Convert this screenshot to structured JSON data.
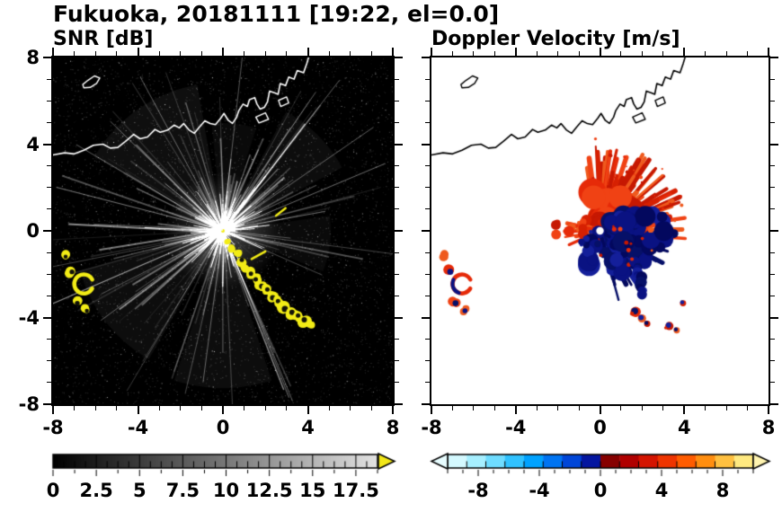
{
  "header": {
    "title": "Fukuoka, 20181111 [19:22, el=0.0]"
  },
  "panels": [
    {
      "title": "SNR [dB]"
    },
    {
      "title": "Doppler Velocity [m/s]"
    }
  ],
  "axis": {
    "xlim": [
      -8,
      8
    ],
    "ylim": [
      -8,
      8
    ],
    "xtick_labels": [
      "-8",
      "-4",
      "0",
      "4",
      "8"
    ],
    "xtick_values": [
      -8,
      -4,
      0,
      4,
      8
    ],
    "ytick_labels": [
      "8",
      "4",
      "0",
      "-4",
      "-8"
    ],
    "ytick_values": [
      8,
      4,
      0,
      -4,
      -8
    ],
    "minor_step": 1
  },
  "colorbars": [
    {
      "panel": "SNR [dB]",
      "range": [
        0,
        18.75
      ],
      "tick_labels": [
        "0",
        "2.5",
        "5",
        "7.5",
        "10",
        "12.5",
        "15",
        "17.5"
      ],
      "tick_values": [
        0,
        2.5,
        5,
        7.5,
        10,
        12.5,
        15,
        17.5
      ],
      "type": "grayscale-continuous",
      "start_color": "#000000",
      "end_color": "#e2e2e2",
      "overflow_arrow_color": "#f2e718"
    },
    {
      "panel": "Doppler Velocity [m/s]",
      "range": [
        -10,
        10
      ],
      "tick_labels": [
        "-8",
        "-4",
        "0",
        "4",
        "8"
      ],
      "tick_values": [
        -8,
        -4,
        0,
        4,
        8
      ],
      "type": "discrete",
      "colors": [
        "#d4f9ff",
        "#a6efff",
        "#6edcff",
        "#30c2ff",
        "#00a2ff",
        "#0074f2",
        "#0046d8",
        "#0416a0",
        "#860000",
        "#b00000",
        "#d41400",
        "#ee3400",
        "#ff5c00",
        "#ff8e10",
        "#ffc040",
        "#ffe980"
      ],
      "underflow_arrow_color": "#e8fdff",
      "overflow_arrow_color": "#fff4b0"
    }
  ],
  "map": {
    "coastline": [
      [
        -8,
        3.5
      ],
      [
        -7.45,
        3.6
      ],
      [
        -7.0,
        3.55
      ],
      [
        -6.55,
        3.72
      ],
      [
        -6.1,
        3.95
      ],
      [
        -5.65,
        4.0
      ],
      [
        -5.3,
        3.82
      ],
      [
        -4.95,
        3.85
      ],
      [
        -4.6,
        4.12
      ],
      [
        -4.2,
        4.45
      ],
      [
        -3.9,
        4.25
      ],
      [
        -3.55,
        4.33
      ],
      [
        -3.2,
        4.68
      ],
      [
        -2.95,
        4.55
      ],
      [
        -2.6,
        4.65
      ],
      [
        -2.3,
        4.88
      ],
      [
        -2.05,
        4.75
      ],
      [
        -1.85,
        4.95
      ],
      [
        -1.6,
        4.66
      ],
      [
        -1.35,
        4.5
      ],
      [
        -1.1,
        4.8
      ],
      [
        -0.85,
        5.08
      ],
      [
        -0.6,
        4.95
      ],
      [
        -0.35,
        4.9
      ],
      [
        -0.1,
        5.2
      ],
      [
        0.05,
        5.42
      ],
      [
        0.25,
        5.1
      ],
      [
        0.45,
        4.96
      ],
      [
        0.65,
        5.25
      ],
      [
        0.75,
        5.55
      ],
      [
        0.95,
        5.85
      ],
      [
        1.15,
        5.74
      ],
      [
        1.25,
        6.05
      ],
      [
        1.5,
        6.15
      ],
      [
        1.6,
        5.86
      ],
      [
        1.75,
        5.62
      ],
      [
        1.95,
        5.7
      ],
      [
        2.1,
        5.95
      ],
      [
        2.2,
        6.45
      ],
      [
        2.45,
        6.36
      ],
      [
        2.6,
        6.3
      ],
      [
        2.7,
        6.8
      ],
      [
        2.95,
        6.7
      ],
      [
        3.1,
        7.1
      ],
      [
        3.35,
        7.0
      ],
      [
        3.5,
        7.4
      ],
      [
        3.8,
        7.3
      ],
      [
        3.95,
        7.72
      ],
      [
        4.05,
        8.05
      ]
    ],
    "island": [
      [
        -6.6,
        6.75
      ],
      [
        -6.35,
        6.95
      ],
      [
        -6.05,
        7.15
      ],
      [
        -5.8,
        7.05
      ],
      [
        -5.95,
        6.8
      ],
      [
        -6.25,
        6.62
      ],
      [
        -6.55,
        6.6
      ]
    ],
    "quays": [
      [
        [
          1.55,
          5.25
        ],
        [
          2.0,
          5.45
        ],
        [
          2.15,
          5.15
        ],
        [
          1.7,
          4.98
        ]
      ],
      [
        [
          2.62,
          6.02
        ],
        [
          3.0,
          6.18
        ],
        [
          3.1,
          5.9
        ],
        [
          2.72,
          5.74
        ]
      ]
    ]
  },
  "chart_data": [
    {
      "type": "heatmap",
      "title": "SNR [dB]",
      "xlim": [
        -8,
        8
      ],
      "ylim": [
        -8,
        8
      ],
      "xticks": [
        -8,
        -4,
        0,
        4,
        8
      ],
      "yticks": [
        -8,
        -4,
        0,
        4,
        8
      ],
      "grid": false,
      "colorbar": {
        "range": [
          0,
          18.75
        ],
        "ticks": [
          0,
          2.5,
          5,
          7.5,
          10,
          12.5,
          15,
          17.5
        ],
        "unit": "dB"
      },
      "radar_center": [
        0,
        0
      ],
      "clutter": "gray radial ground-clutter streaks from radar at (0,0) out to ~4 km, dark sector toward southeast, speckle noise over black background",
      "echo_chain": [
        [
          0.22,
          -0.5,
          3
        ],
        [
          0.45,
          -0.8,
          4
        ],
        [
          0.68,
          -1.05,
          4
        ],
        [
          0.9,
          -1.4,
          5
        ],
        [
          1.05,
          -1.7,
          4
        ],
        [
          1.3,
          -1.95,
          5
        ],
        [
          1.55,
          -2.2,
          5
        ],
        [
          1.8,
          -2.5,
          6
        ],
        [
          2.05,
          -2.7,
          5
        ],
        [
          2.35,
          -3.05,
          6
        ],
        [
          2.6,
          -3.25,
          5
        ],
        [
          2.95,
          -3.55,
          7
        ],
        [
          3.3,
          -3.8,
          6
        ],
        [
          3.6,
          -3.95,
          5
        ],
        [
          3.85,
          -4.15,
          6
        ],
        [
          4.1,
          -4.3,
          4
        ]
      ],
      "yellow_streaks": [
        [
          [
            1.35,
            -1.3
          ],
          [
            2.0,
            -0.95
          ]
        ],
        [
          [
            2.5,
            0.7
          ],
          [
            2.95,
            1.05
          ]
        ]
      ],
      "west_echoes": [
        [
          -7.45,
          -1.15,
          5
        ],
        [
          -7.15,
          -1.85,
          6
        ],
        [
          -6.9,
          -3.3,
          6
        ],
        [
          -6.45,
          -3.65,
          5
        ]
      ],
      "west_arc": {
        "center": [
          -6.55,
          -2.45
        ],
        "radius": 0.45
      }
    },
    {
      "type": "heatmap",
      "title": "Doppler Velocity [m/s]",
      "xlim": [
        -8,
        8
      ],
      "ylim": [
        -8,
        8
      ],
      "xticks": [
        -8,
        -4,
        0,
        4,
        8
      ],
      "yticks": [
        -8,
        -4,
        0,
        4,
        8
      ],
      "grid": false,
      "colorbar": {
        "range": [
          -10,
          10
        ],
        "ticks": [
          -8,
          -4,
          0,
          4,
          8
        ],
        "unit": "m/s"
      },
      "radar_center": [
        0,
        0
      ],
      "positive_fan": {
        "center": [
          0,
          0
        ],
        "angles_deg": [
          -8,
          108
        ],
        "max_range": 4.0,
        "sign": "positive (red, away from radar)"
      },
      "west_arm": {
        "center": [
          -0.9,
          0.15
        ],
        "extent": [
          1.3,
          0.5
        ],
        "sign": "positive"
      },
      "negative_lobe": {
        "center": [
          1.35,
          -0.55
        ],
        "rx": 2.3,
        "ry": 1.3,
        "rot_deg": -18,
        "sign": "negative (blue, toward radar)"
      },
      "negative_strip": [
        [
          1.75,
          -1.5
        ],
        [
          2.0,
          -2.9
        ]
      ],
      "southeast_cells": [
        [
          1.65,
          -3.7,
          5
        ],
        [
          1.95,
          -4.0,
          4
        ],
        [
          2.2,
          -4.25,
          3
        ],
        [
          3.25,
          -4.35,
          4
        ],
        [
          3.6,
          -4.55,
          3
        ],
        [
          3.9,
          -3.3,
          3
        ]
      ],
      "west_cells": [
        [
          -7.45,
          -1.15,
          5
        ],
        [
          -7.15,
          -1.85,
          6
        ],
        [
          -6.9,
          -3.3,
          6
        ],
        [
          -6.45,
          -3.65,
          5
        ]
      ],
      "west_arc": {
        "center": [
          -6.55,
          -2.45
        ],
        "radius": 0.45
      }
    }
  ]
}
